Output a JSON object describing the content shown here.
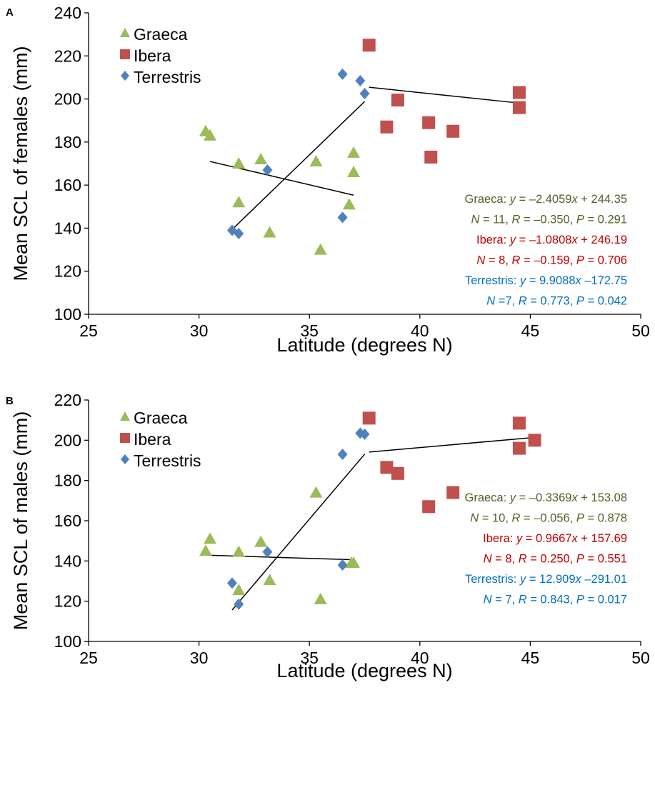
{
  "chart_data": [
    {
      "panel": "A",
      "type": "scatter",
      "xlabel": "Latitude (degrees N)",
      "ylabel": "Mean SCL of females (mm)",
      "xlim": [
        25,
        50
      ],
      "ylim": [
        100,
        240
      ],
      "xticks": [
        25,
        30,
        35,
        40,
        45,
        50
      ],
      "yticks": [
        100,
        120,
        140,
        160,
        180,
        200,
        220,
        240
      ],
      "grid": false,
      "legend_position": "top-left",
      "series": [
        {
          "name": "Graeca",
          "marker": "triangle",
          "color": "#9BBB59",
          "points": [
            [
              30.3,
              185
            ],
            [
              30.5,
              183
            ],
            [
              31.8,
              170
            ],
            [
              31.8,
              152
            ],
            [
              32.8,
              172
            ],
            [
              33.2,
              138
            ],
            [
              35.3,
              171
            ],
            [
              35.5,
              130
            ],
            [
              36.8,
              151
            ],
            [
              37.0,
              175
            ],
            [
              37.0,
              166
            ]
          ],
          "fit": {
            "slope": -2.4059,
            "intercept": 244.35,
            "x_range": [
              30.5,
              37.0
            ]
          },
          "annotation": [
            [
              "Graeca: ",
              "y",
              " = –2.4059",
              "x",
              " + 244.35"
            ],
            [
              "N",
              " = 11, ",
              "R",
              " = –0.350, ",
              "P",
              " = 0.291"
            ]
          ]
        },
        {
          "name": "Ibera",
          "marker": "square",
          "color": "#C0504D",
          "points": [
            [
              37.7,
              225
            ],
            [
              38.5,
              187
            ],
            [
              39.0,
              199.5
            ],
            [
              40.4,
              189
            ],
            [
              40.5,
              173
            ],
            [
              41.5,
              185
            ],
            [
              44.5,
              203
            ],
            [
              44.5,
              196
            ]
          ],
          "fit": {
            "slope": -1.0808,
            "intercept": 246.19,
            "x_range": [
              37.7,
              44.5
            ]
          },
          "annotation": [
            [
              "Ibera: ",
              "y",
              " = –1.0808",
              "x",
              " + 246.19"
            ],
            [
              "N",
              " = 8, ",
              "R",
              " = –0.159, ",
              "P",
              " = 0.706"
            ]
          ]
        },
        {
          "name": "Terrestris",
          "marker": "diamond",
          "color": "#4F81BD",
          "points": [
            [
              31.5,
              139
            ],
            [
              31.8,
              137.5
            ],
            [
              33.1,
              167
            ],
            [
              36.5,
              211.5
            ],
            [
              37.3,
              208.5
            ],
            [
              37.5,
              202.5
            ],
            [
              36.5,
              145
            ]
          ],
          "fit": {
            "slope": 9.9088,
            "intercept": -172.75,
            "x_range": [
              31.5,
              37.5
            ]
          },
          "annotation": [
            [
              "Terrestris: ",
              "y",
              " = 9.9088",
              "x",
              " –172.75"
            ],
            [
              "N",
              " =7, ",
              "R",
              " = 0.773, ",
              "P",
              " = 0.042"
            ]
          ]
        }
      ],
      "annotation_colors": [
        "#4F6228",
        "#C00000",
        "#0070C0"
      ]
    },
    {
      "panel": "B",
      "type": "scatter",
      "xlabel": "Latitude (degrees N)",
      "ylabel": "Mean SCL of males (mm)",
      "xlim": [
        25,
        50
      ],
      "ylim": [
        100,
        220
      ],
      "xticks": [
        25,
        30,
        35,
        40,
        45,
        50
      ],
      "yticks": [
        100,
        120,
        140,
        160,
        180,
        200,
        220
      ],
      "grid": false,
      "legend_position": "top-left",
      "series": [
        {
          "name": "Graeca",
          "marker": "triangle",
          "color": "#9BBB59",
          "points": [
            [
              30.3,
              145
            ],
            [
              30.5,
              151
            ],
            [
              31.8,
              144.5
            ],
            [
              31.8,
              125.5
            ],
            [
              32.8,
              149.5
            ],
            [
              33.2,
              130.5
            ],
            [
              35.3,
              174
            ],
            [
              35.5,
              121
            ],
            [
              36.9,
              139
            ],
            [
              37.0,
              139
            ]
          ],
          "fit": {
            "slope": -0.3369,
            "intercept": 153.08,
            "x_range": [
              30.5,
              37.0
            ]
          },
          "annotation": [
            [
              "Graeca: ",
              "y",
              " = –0.3369",
              "x",
              " + 153.08"
            ],
            [
              "N",
              " = 10, ",
              "R",
              " = –0.056, ",
              "P",
              " = 0.878"
            ]
          ]
        },
        {
          "name": "Ibera",
          "marker": "square",
          "color": "#C0504D",
          "points": [
            [
              37.7,
              211
            ],
            [
              38.5,
              186.5
            ],
            [
              39.0,
              183.5
            ],
            [
              40.4,
              167
            ],
            [
              41.5,
              174
            ],
            [
              44.5,
              208.5
            ],
            [
              44.5,
              196
            ],
            [
              45.2,
              200
            ]
          ],
          "fit": {
            "slope": 0.9667,
            "intercept": 157.69,
            "x_range": [
              37.7,
              45.2
            ]
          },
          "annotation": [
            [
              "Ibera: ",
              "y",
              " = 0.9667",
              "x",
              " + 157.69"
            ],
            [
              "N",
              " = 8, ",
              "R",
              " = 0.250, ",
              "P",
              " = 0.551"
            ]
          ]
        },
        {
          "name": "Terrestris",
          "marker": "diamond",
          "color": "#4F81BD",
          "points": [
            [
              31.5,
              129
            ],
            [
              31.8,
              118.5
            ],
            [
              33.1,
              144.5
            ],
            [
              36.5,
              193
            ],
            [
              37.3,
              203.5
            ],
            [
              37.5,
              203
            ],
            [
              36.5,
              138
            ]
          ],
          "fit": {
            "slope": 12.909,
            "intercept": -291.01,
            "x_range": [
              31.5,
              37.5
            ]
          },
          "annotation": [
            [
              "Terrestris: ",
              "y",
              " = 12.909",
              "x",
              " –291.01"
            ],
            [
              "N",
              " = 7, ",
              "R",
              " = 0.843, ",
              "P",
              " = 0.017"
            ]
          ]
        }
      ],
      "annotation_colors": [
        "#4F6228",
        "#C00000",
        "#0070C0"
      ]
    }
  ]
}
